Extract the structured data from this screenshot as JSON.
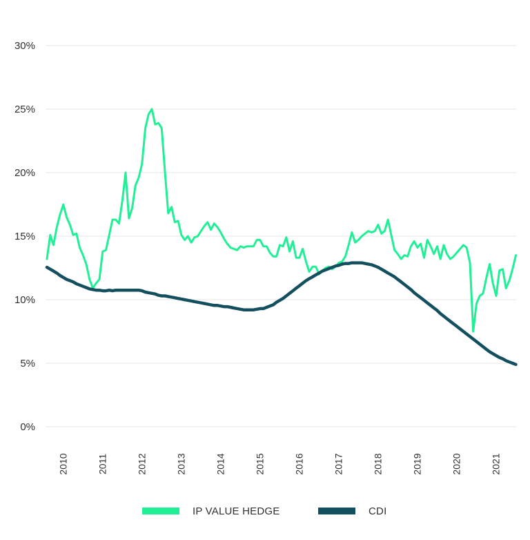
{
  "chart_data": {
    "type": "line",
    "title": "",
    "xlabel": "",
    "ylabel": "",
    "ylim": [
      0,
      30
    ],
    "yticks": [
      0,
      5,
      10,
      15,
      20,
      25,
      30
    ],
    "ytick_labels": [
      "0%",
      "5%",
      "10%",
      "15%",
      "20%",
      "25%",
      "30%"
    ],
    "xticks": [
      "2010",
      "2011",
      "2012",
      "2013",
      "2014",
      "2015",
      "2016",
      "2017",
      "2018",
      "2019",
      "2020",
      "2021"
    ],
    "x_start": "2009-08",
    "x_end": "2021-07",
    "x_frequency": "monthly",
    "grid": true,
    "legend_position": "bottom",
    "series": [
      {
        "name": "IP VALUE HEDGE",
        "color": "#1ff095",
        "values": [
          13.2,
          15.1,
          14.3,
          15.7,
          16.7,
          17.5,
          16.5,
          15.9,
          15.1,
          15.2,
          14.1,
          13.5,
          12.8,
          11.6,
          10.9,
          11.3,
          11.6,
          13.8,
          13.9,
          15.1,
          16.3,
          16.3,
          16.0,
          17.8,
          20.0,
          16.4,
          17.2,
          19.0,
          19.6,
          20.7,
          23.5,
          24.6,
          25.0,
          23.8,
          23.9,
          23.5,
          20.0,
          16.8,
          17.3,
          16.1,
          16.2,
          15.1,
          14.7,
          15.0,
          14.5,
          14.9,
          15.0,
          15.4,
          15.8,
          16.1,
          15.5,
          16.0,
          15.7,
          15.3,
          14.8,
          14.4,
          14.1,
          14.0,
          13.9,
          14.2,
          14.1,
          14.2,
          14.2,
          14.2,
          14.7,
          14.7,
          14.2,
          14.2,
          13.7,
          13.4,
          13.4,
          14.3,
          14.2,
          14.9,
          13.8,
          14.6,
          13.3,
          13.3,
          14.0,
          13.0,
          12.2,
          12.6,
          12.6,
          12.0,
          12.3,
          12.5,
          12.6,
          12.4,
          12.6,
          12.9,
          13.0,
          13.4,
          14.3,
          15.3,
          14.5,
          14.7,
          15.0,
          15.2,
          15.4,
          15.3,
          15.4,
          15.9,
          15.2,
          15.4,
          16.3,
          15.1,
          13.9,
          13.6,
          13.2,
          13.5,
          13.4,
          14.2,
          14.6,
          14.1,
          14.4,
          13.3,
          14.7,
          14.2,
          13.6,
          14.2,
          13.2,
          14.3,
          13.6,
          13.2,
          13.4,
          13.7,
          14.0,
          14.3,
          14.1,
          12.9,
          7.5,
          9.7,
          10.3,
          10.5,
          11.7,
          12.8,
          11.3,
          10.3,
          12.3,
          12.4,
          10.9,
          11.5,
          12.4,
          13.5
        ]
      },
      {
        "name": "CDI",
        "color": "#134f5e",
        "values": [
          12.55,
          12.4,
          12.25,
          12.1,
          11.9,
          11.75,
          11.6,
          11.5,
          11.4,
          11.25,
          11.15,
          11.05,
          10.95,
          10.85,
          10.8,
          10.75,
          10.75,
          10.7,
          10.7,
          10.75,
          10.7,
          10.75,
          10.75,
          10.75,
          10.75,
          10.75,
          10.75,
          10.75,
          10.75,
          10.7,
          10.6,
          10.55,
          10.5,
          10.45,
          10.35,
          10.3,
          10.3,
          10.25,
          10.2,
          10.15,
          10.1,
          10.05,
          10.0,
          9.95,
          9.9,
          9.85,
          9.8,
          9.75,
          9.7,
          9.65,
          9.6,
          9.55,
          9.55,
          9.5,
          9.45,
          9.45,
          9.4,
          9.35,
          9.3,
          9.25,
          9.2,
          9.2,
          9.2,
          9.2,
          9.25,
          9.3,
          9.3,
          9.4,
          9.5,
          9.6,
          9.8,
          9.95,
          10.1,
          10.3,
          10.5,
          10.7,
          10.9,
          11.1,
          11.3,
          11.5,
          11.65,
          11.8,
          11.95,
          12.1,
          12.25,
          12.35,
          12.45,
          12.55,
          12.65,
          12.7,
          12.8,
          12.85,
          12.85,
          12.9,
          12.9,
          12.9,
          12.9,
          12.85,
          12.8,
          12.75,
          12.65,
          12.55,
          12.4,
          12.25,
          12.1,
          11.95,
          11.8,
          11.6,
          11.4,
          11.2,
          11.0,
          10.8,
          10.55,
          10.35,
          10.15,
          9.95,
          9.75,
          9.55,
          9.35,
          9.15,
          8.9,
          8.7,
          8.5,
          8.3,
          8.1,
          7.9,
          7.7,
          7.5,
          7.3,
          7.1,
          6.9,
          6.7,
          6.5,
          6.3,
          6.1,
          5.9,
          5.75,
          5.6,
          5.45,
          5.35,
          5.2,
          5.1,
          5.0,
          4.9
        ]
      }
    ]
  }
}
